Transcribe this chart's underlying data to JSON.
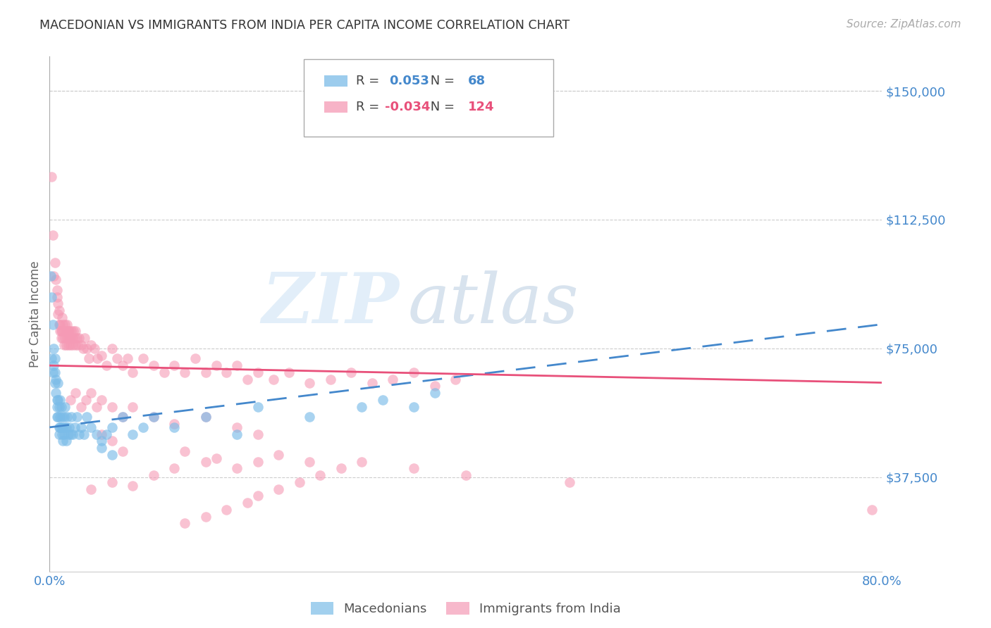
{
  "title": "MACEDONIAN VS IMMIGRANTS FROM INDIA PER CAPITA INCOME CORRELATION CHART",
  "source": "Source: ZipAtlas.com",
  "ylabel": "Per Capita Income",
  "ymin": 10000,
  "ymax": 160000,
  "xmin": 0.0,
  "xmax": 0.8,
  "watermark_line1": "ZIP",
  "watermark_line2": "atlas",
  "legend_blue_R": "0.053",
  "legend_blue_N": "68",
  "legend_pink_R": "-0.034",
  "legend_pink_N": "124",
  "blue_color": "#7bbce8",
  "pink_color": "#f59ab5",
  "trend_blue_color": "#4488cc",
  "trend_pink_color": "#e8507a",
  "axis_color": "#4488cc",
  "background_color": "#ffffff",
  "grid_color": "#cccccc",
  "blue_scatter_x": [
    0.001,
    0.002,
    0.002,
    0.003,
    0.003,
    0.004,
    0.004,
    0.005,
    0.005,
    0.005,
    0.006,
    0.006,
    0.007,
    0.007,
    0.007,
    0.008,
    0.008,
    0.008,
    0.009,
    0.009,
    0.009,
    0.01,
    0.01,
    0.01,
    0.011,
    0.011,
    0.012,
    0.012,
    0.013,
    0.013,
    0.014,
    0.014,
    0.015,
    0.015,
    0.016,
    0.016,
    0.017,
    0.018,
    0.019,
    0.02,
    0.021,
    0.022,
    0.024,
    0.026,
    0.028,
    0.03,
    0.033,
    0.036,
    0.04,
    0.045,
    0.05,
    0.055,
    0.06,
    0.07,
    0.08,
    0.09,
    0.1,
    0.12,
    0.15,
    0.18,
    0.2,
    0.25,
    0.3,
    0.32,
    0.35,
    0.37,
    0.05,
    0.06
  ],
  "blue_scatter_y": [
    96000,
    90000,
    72000,
    82000,
    68000,
    75000,
    70000,
    72000,
    65000,
    68000,
    66000,
    62000,
    60000,
    58000,
    55000,
    65000,
    60000,
    55000,
    58000,
    52000,
    50000,
    60000,
    55000,
    52000,
    58000,
    52000,
    55000,
    50000,
    52000,
    48000,
    55000,
    50000,
    58000,
    52000,
    52000,
    48000,
    55000,
    50000,
    52000,
    50000,
    55000,
    50000,
    52000,
    55000,
    50000,
    52000,
    50000,
    55000,
    52000,
    50000,
    48000,
    50000,
    52000,
    55000,
    50000,
    52000,
    55000,
    52000,
    55000,
    50000,
    58000,
    55000,
    58000,
    60000,
    58000,
    62000,
    46000,
    44000
  ],
  "pink_scatter_x": [
    0.002,
    0.003,
    0.004,
    0.005,
    0.006,
    0.007,
    0.007,
    0.008,
    0.008,
    0.009,
    0.009,
    0.01,
    0.01,
    0.011,
    0.011,
    0.012,
    0.012,
    0.013,
    0.013,
    0.014,
    0.014,
    0.015,
    0.015,
    0.016,
    0.016,
    0.017,
    0.017,
    0.018,
    0.018,
    0.019,
    0.019,
    0.02,
    0.02,
    0.021,
    0.022,
    0.022,
    0.023,
    0.024,
    0.025,
    0.025,
    0.026,
    0.027,
    0.028,
    0.03,
    0.032,
    0.034,
    0.036,
    0.038,
    0.04,
    0.043,
    0.046,
    0.05,
    0.055,
    0.06,
    0.065,
    0.07,
    0.075,
    0.08,
    0.09,
    0.1,
    0.11,
    0.12,
    0.13,
    0.14,
    0.15,
    0.16,
    0.17,
    0.18,
    0.19,
    0.2,
    0.215,
    0.23,
    0.25,
    0.27,
    0.29,
    0.31,
    0.33,
    0.35,
    0.37,
    0.39,
    0.02,
    0.025,
    0.03,
    0.035,
    0.04,
    0.045,
    0.05,
    0.06,
    0.07,
    0.08,
    0.1,
    0.12,
    0.15,
    0.18,
    0.2,
    0.05,
    0.06,
    0.07,
    0.13,
    0.16,
    0.2,
    0.22,
    0.25,
    0.18,
    0.15,
    0.12,
    0.1,
    0.08,
    0.06,
    0.04,
    0.79,
    0.5,
    0.4,
    0.35,
    0.3,
    0.28,
    0.26,
    0.24,
    0.22,
    0.2,
    0.19,
    0.17,
    0.15,
    0.13
  ],
  "pink_scatter_y": [
    125000,
    108000,
    96000,
    100000,
    95000,
    90000,
    92000,
    88000,
    85000,
    82000,
    86000,
    82000,
    80000,
    80000,
    78000,
    80000,
    84000,
    78000,
    82000,
    80000,
    76000,
    82000,
    78000,
    80000,
    76000,
    82000,
    78000,
    80000,
    76000,
    78000,
    80000,
    78000,
    76000,
    80000,
    78000,
    76000,
    80000,
    78000,
    76000,
    80000,
    78000,
    76000,
    78000,
    76000,
    75000,
    78000,
    75000,
    72000,
    76000,
    75000,
    72000,
    73000,
    70000,
    75000,
    72000,
    70000,
    72000,
    68000,
    72000,
    70000,
    68000,
    70000,
    68000,
    72000,
    68000,
    70000,
    68000,
    70000,
    66000,
    68000,
    66000,
    68000,
    65000,
    66000,
    68000,
    65000,
    66000,
    68000,
    64000,
    66000,
    60000,
    62000,
    58000,
    60000,
    62000,
    58000,
    60000,
    58000,
    55000,
    58000,
    55000,
    53000,
    55000,
    52000,
    50000,
    50000,
    48000,
    45000,
    45000,
    43000,
    42000,
    44000,
    42000,
    40000,
    42000,
    40000,
    38000,
    35000,
    36000,
    34000,
    28000,
    36000,
    38000,
    40000,
    42000,
    40000,
    38000,
    36000,
    34000,
    32000,
    30000,
    28000,
    26000,
    24000
  ]
}
